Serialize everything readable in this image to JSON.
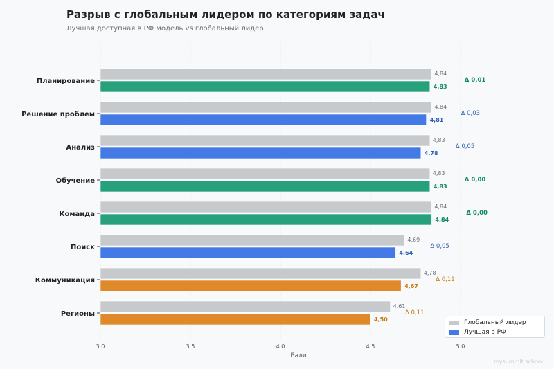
{
  "title": "Разрыв с глобальным лидером по категориям задач",
  "subtitle": "Лучшая доступная в РФ модель vs глобальный лидер",
  "watermark": "mysummit.school",
  "legend": {
    "global_label": "Глобальный лидер",
    "rf_label": "Лучшая в РФ"
  },
  "colors": {
    "global": "#c7cacd",
    "green": "#27a17c",
    "blue": "#437ae6",
    "orange": "#e0892a",
    "green_text": "#0f8a5f",
    "blue_text": "#2f5fb3",
    "orange_text": "#c77a10"
  },
  "chart_data": {
    "type": "bar",
    "orientation": "horizontal",
    "xlabel": "Балл",
    "xlim": [
      3.0,
      5.0
    ],
    "xticks": [
      3.0,
      3.5,
      4.0,
      4.5,
      5.0
    ],
    "xtick_labels": [
      "3.0",
      "3.5",
      "4.0",
      "4.5",
      "5.0"
    ],
    "categories": [
      "Планирование",
      "Решение проблем",
      "Анализ",
      "Обучение",
      "Команда",
      "Поиск",
      "Коммуникация",
      "Регионы"
    ],
    "series": [
      {
        "name": "Глобальный лидер",
        "values": [
          4.84,
          4.84,
          4.83,
          4.83,
          4.84,
          4.69,
          4.78,
          4.61
        ],
        "labels": [
          "4,84",
          "4,84",
          "4,83",
          "4,83",
          "4,84",
          "4,69",
          "4,78",
          "4,61"
        ]
      },
      {
        "name": "Лучшая в РФ",
        "values": [
          4.83,
          4.81,
          4.78,
          4.83,
          4.84,
          4.64,
          4.67,
          4.5
        ],
        "labels": [
          "4,83",
          "4,81",
          "4,78",
          "4,83",
          "4,84",
          "4,64",
          "4,67",
          "4,50"
        ],
        "gap_class": [
          "green",
          "blue",
          "blue",
          "green",
          "green",
          "blue",
          "orange",
          "orange"
        ]
      }
    ],
    "gap_labels": [
      "Δ 0,01",
      "Δ 0,03",
      "Δ 0,05",
      "Δ 0,00",
      "Δ 0,00",
      "Δ 0,05",
      "Δ 0,11",
      "Δ 0,11"
    ],
    "grid": true,
    "legend_position": "bottom-right"
  }
}
